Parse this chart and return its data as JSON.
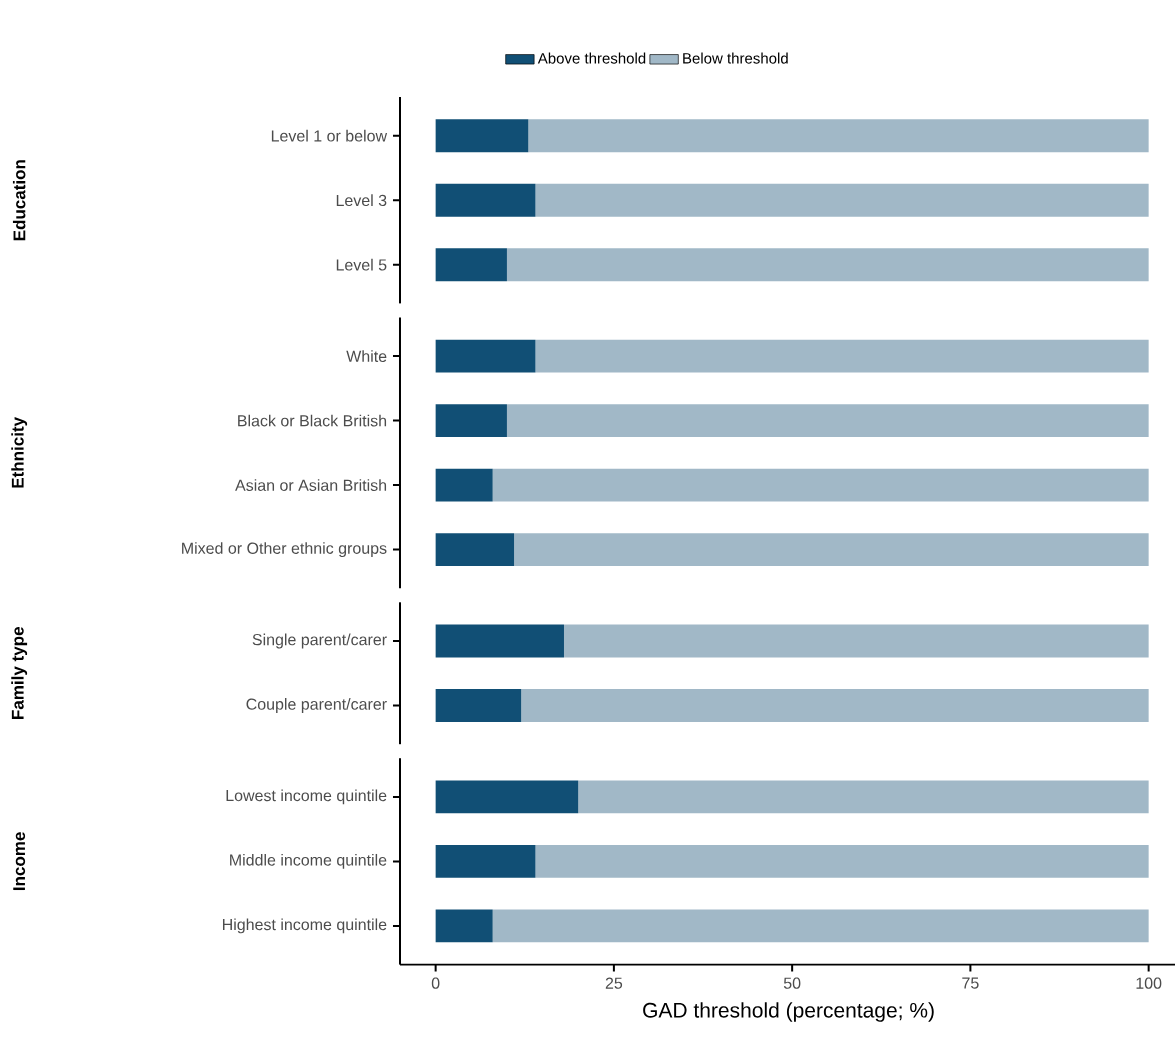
{
  "chart_data": [
    {
      "type": "bar",
      "orientation": "horizontal",
      "stacked": true,
      "ylabel": "Education",
      "categories": [
        "Level 1 or below",
        "Level 3",
        "Level 5"
      ],
      "xticks": [
        0,
        25,
        50,
        75,
        100
      ],
      "tick_labels": "y",
      "legend": "top",
      "series": [
        {
          "name": "Above threshold",
          "color": "#114f75",
          "values": [
            13,
            14,
            10
          ]
        },
        {
          "name": "Below threshold",
          "color": "#a1b8c7",
          "values": [
            87,
            86,
            90
          ]
        }
      ]
    },
    {
      "type": "bar",
      "orientation": "horizontal",
      "stacked": true,
      "ylabel": "Ethnicity",
      "categories": [
        "White",
        "Black or Black British",
        "Asian or Asian British",
        "Mixed or Other ethnic groups"
      ],
      "xticks": [
        0,
        25,
        50,
        75,
        100
      ],
      "tick_labels": "y",
      "series": [
        {
          "color": "#114f75",
          "values": [
            14,
            10,
            8,
            11
          ]
        },
        {
          "color": "#a1b8c7",
          "values": [
            86,
            90,
            92,
            89
          ]
        }
      ]
    },
    {
      "type": "bar",
      "orientation": "horizontal",
      "stacked": true,
      "ylabel": "Family type",
      "categories": [
        "Single parent/carer",
        "Couple parent/carer"
      ],
      "xticks": [
        0,
        25,
        50,
        75,
        100
      ],
      "tick_labels": "y",
      "series": [
        {
          "color": "#114f75",
          "values": [
            18,
            12
          ]
        },
        {
          "color": "#a1b8c7",
          "values": [
            82,
            88
          ]
        }
      ]
    },
    {
      "type": "bar",
      "orientation": "horizontal",
      "stacked": true,
      "ylabel": "Income",
      "xlabel": "GAD threshold (percentage; %)",
      "categories": [
        "Lowest income quintile",
        "Middle income quintile",
        "Highest income quintile"
      ],
      "xlim": [
        -5,
        104
      ],
      "xticks": [
        0,
        25,
        50,
        75,
        100
      ],
      "series": [
        {
          "color": "#114f75",
          "values": [
            20,
            14,
            8
          ]
        },
        {
          "color": "#a1b8c7",
          "values": [
            80,
            86,
            92
          ]
        }
      ]
    }
  ]
}
